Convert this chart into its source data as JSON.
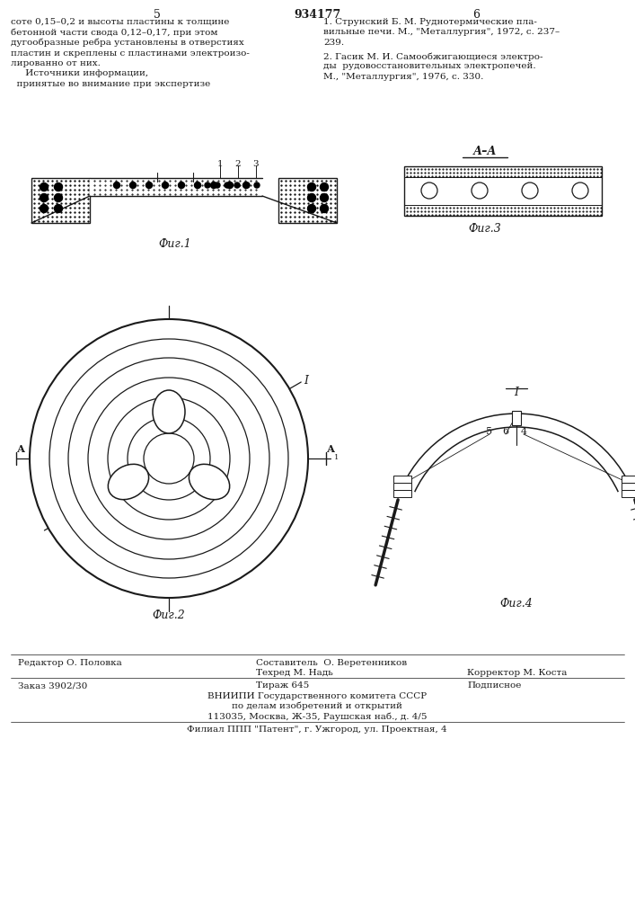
{
  "bg_color": "#ffffff",
  "line_color": "#1a1a1a",
  "title": "934177",
  "page_left": "5",
  "page_right": "6",
  "fig1_caption": "Фиг.1",
  "fig2_caption": "Фиг.2",
  "fig3_caption": "Фиг.3",
  "fig4_caption": "Фиг.4",
  "text_left_lines": [
    "соте 0,15–0,2 и высоты пластины к толщине",
    "бетонной части свода 0,12–0,17, при этом",
    "дугообразные ребра установлены в отверстиях",
    "пластин и скреплены с пластинами электроизо-",
    "лированно от них.",
    "     Источники информации,",
    "  принятые во внимание при экспертизе"
  ],
  "text_right_1_lines": [
    "1. Струнский Б. М. Руднотермические пла-",
    "вильные печи. М., \"Металлургия\", 1972, с. 237–",
    "239."
  ],
  "text_right_2_lines": [
    "2. Гасик М. И. Самообжигающиеся электро-",
    "ды  рудовосстановительных электропечей.",
    "М., \"Металлургия\", 1976, с. 330."
  ],
  "footer_line1_left": "Редактор О. Половка",
  "footer_line1_center_top": "Составитель  О. Веретенников",
  "footer_line1_center_bot": "Техред М. Надь",
  "footer_line1_right": "Корректор М. Коста",
  "footer_line2_left": "Заказ 3902/30",
  "footer_line2_center": "Тираж 645",
  "footer_line2_right": "Подписное",
  "footer_line3": "ВНИИПИ Государственного комитета СССР",
  "footer_line4": "по делам изобретений и открытий",
  "footer_line5": "113035, Москва, Ж-35, Раушская наб., д. 4/5",
  "footer_line6": "Филиал ППП \"Патент\", г. Ужгород, ул. Проектная, 4"
}
